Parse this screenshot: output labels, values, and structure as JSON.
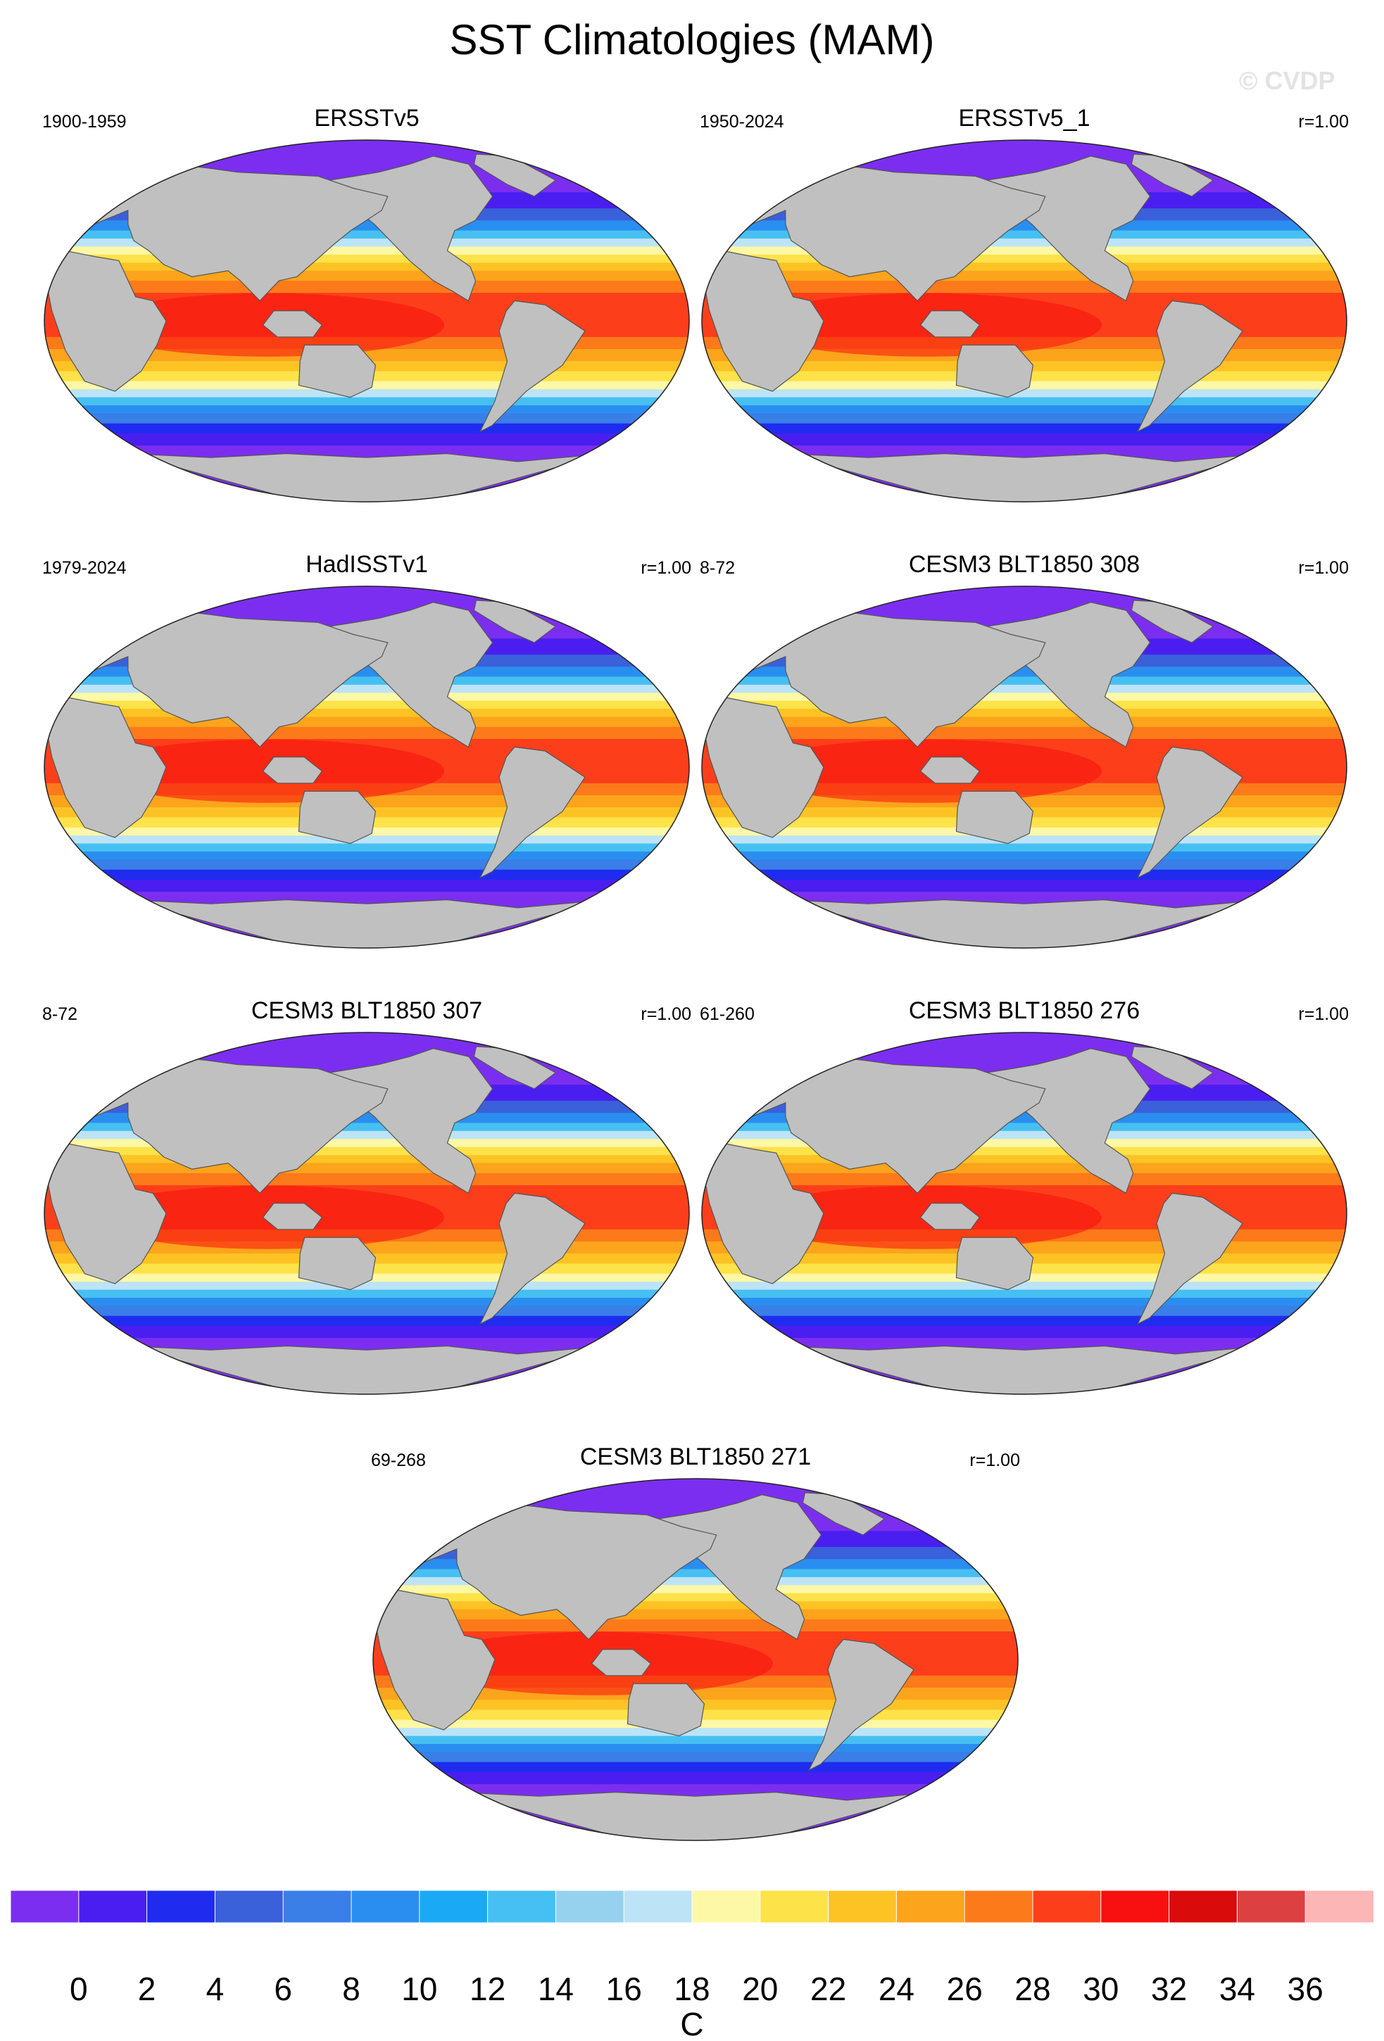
{
  "title": "SST Climatologies (MAM)",
  "watermark": "© CVDP",
  "panels": [
    {
      "title": "ERSSTv5",
      "period": "1900-1959",
      "r": ""
    },
    {
      "title": "ERSSTv5_1",
      "period": "1950-2024",
      "r": "r=1.00"
    },
    {
      "title": "HadISSTv1",
      "period": "1979-2024",
      "r": "r=1.00"
    },
    {
      "title": "CESM3 BLT1850 308",
      "period": "8-72",
      "r": "r=1.00"
    },
    {
      "title": "CESM3 BLT1850 307",
      "period": "8-72",
      "r": "r=1.00"
    },
    {
      "title": "CESM3 BLT1850 276",
      "period": "61-260",
      "r": "r=1.00"
    },
    {
      "title": "CESM3 BLT1850 271",
      "period": "69-268",
      "r": "r=1.00"
    }
  ],
  "colorbar": {
    "unit": "C",
    "ticks": [
      "0",
      "2",
      "4",
      "6",
      "8",
      "10",
      "12",
      "14",
      "16",
      "18",
      "20",
      "22",
      "24",
      "26",
      "28",
      "30",
      "32",
      "34",
      "36"
    ],
    "colors": [
      "#7b2ef0",
      "#4a1ef0",
      "#1f2cf0",
      "#3a60da",
      "#3a7ee8",
      "#2a8ef0",
      "#1aaaf5",
      "#46c0f2",
      "#96d2ee",
      "#bde3f6",
      "#fdf8a6",
      "#fde24a",
      "#fdc325",
      "#fca41c",
      "#fc7a1a",
      "#fc3f1a",
      "#f80f0f",
      "#d90b0b",
      "#dd4040",
      "#fcb6b6"
    ]
  },
  "map_style": {
    "land": "#c0c0c0",
    "border": "#555555"
  }
}
